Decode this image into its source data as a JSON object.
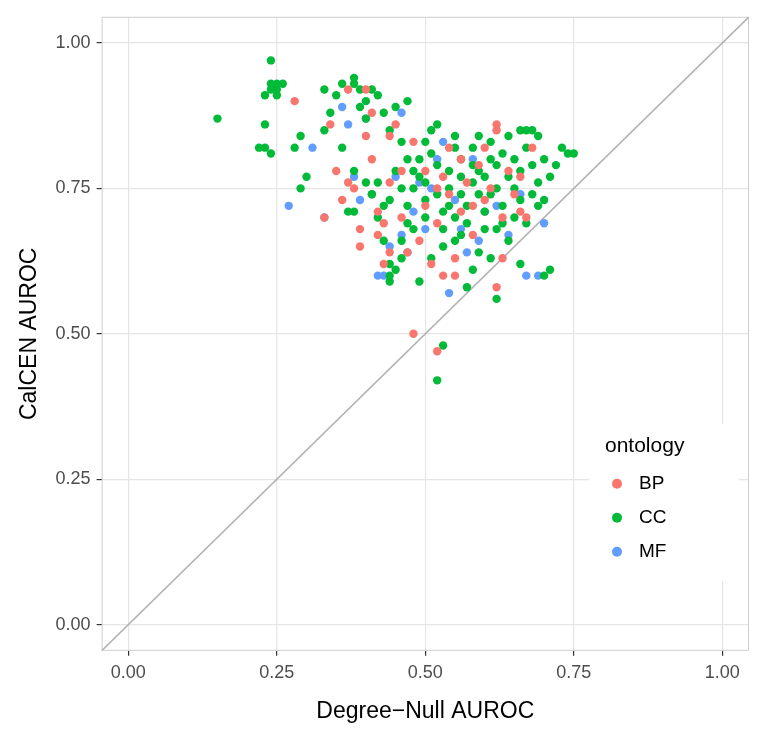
{
  "chart_data": {
    "type": "scatter",
    "x_label": "Degree−Null AUROC",
    "y_label": "CalCEN AUROC",
    "xlim": [
      -0.045,
      1.045
    ],
    "ylim": [
      -0.045,
      1.045
    ],
    "xticks": [
      {
        "value": 0,
        "label": "0.00"
      },
      {
        "value": 0.25,
        "label": "0.25"
      },
      {
        "value": 0.5,
        "label": "0.50"
      },
      {
        "value": 0.75,
        "label": "0.75"
      },
      {
        "value": 1,
        "label": "1.00"
      }
    ],
    "yticks": [
      {
        "value": 0,
        "label": "0.00"
      },
      {
        "value": 0.25,
        "label": "0.25"
      },
      {
        "value": 0.5,
        "label": "0.50"
      },
      {
        "value": 0.75,
        "label": "0.75"
      },
      {
        "value": 1,
        "label": "1.00"
      }
    ],
    "grid": true,
    "legend": "lower right",
    "legend_title": "ontology",
    "marker": "circle",
    "reference_line": {
      "x": [
        -0.045,
        1.045
      ],
      "y": [
        -0.045,
        1.045
      ],
      "color": "#b3b3b3"
    },
    "series": [
      {
        "name": "BP",
        "color": "#F8766D",
        "x": [
          0.28,
          0.33,
          0.34,
          0.35,
          0.36,
          0.37,
          0.37,
          0.38,
          0.39,
          0.39,
          0.4,
          0.4,
          0.41,
          0.41,
          0.42,
          0.42,
          0.43,
          0.43,
          0.44,
          0.44,
          0.45,
          0.46,
          0.46,
          0.47,
          0.48,
          0.48,
          0.49,
          0.5,
          0.5,
          0.51,
          0.52,
          0.52,
          0.53,
          0.53,
          0.54,
          0.54,
          0.55,
          0.55,
          0.56,
          0.56,
          0.57,
          0.58,
          0.58,
          0.59,
          0.6,
          0.6,
          0.61,
          0.62,
          0.62,
          0.62,
          0.63,
          0.63,
          0.64,
          0.65,
          0.66,
          0.66,
          0.67,
          0.68,
          0.44,
          0.52
        ],
        "values": [
          0.9,
          0.7,
          0.86,
          0.78,
          0.73,
          0.92,
          0.76,
          0.75,
          0.68,
          0.65,
          0.92,
          0.84,
          0.88,
          0.8,
          0.71,
          0.67,
          0.69,
          0.62,
          0.84,
          0.64,
          0.86,
          0.7,
          0.78,
          0.64,
          0.83,
          0.5,
          0.66,
          0.78,
          0.72,
          0.62,
          0.47,
          0.69,
          0.77,
          0.6,
          0.82,
          0.74,
          0.63,
          0.6,
          0.8,
          0.71,
          0.76,
          0.72,
          0.67,
          0.79,
          0.73,
          0.82,
          0.75,
          0.85,
          0.58,
          0.86,
          0.7,
          0.63,
          0.78,
          0.74,
          0.71,
          0.77,
          0.7,
          0.82,
          0.76,
          0.75
        ]
      },
      {
        "name": "CC",
        "color": "#00BA38",
        "x": [
          0.15,
          0.22,
          0.23,
          0.24,
          0.23,
          0.23,
          0.24,
          0.24,
          0.24,
          0.25,
          0.25,
          0.26,
          0.25,
          0.28,
          0.29,
          0.3,
          0.29,
          0.33,
          0.33,
          0.34,
          0.35,
          0.36,
          0.38,
          0.38,
          0.39,
          0.39,
          0.4,
          0.4,
          0.41,
          0.42,
          0.43,
          0.45,
          0.47,
          0.44,
          0.46,
          0.36,
          0.37,
          0.38,
          0.38,
          0.4,
          0.41,
          0.42,
          0.43,
          0.43,
          0.44,
          0.44,
          0.44,
          0.45,
          0.46,
          0.46,
          0.47,
          0.47,
          0.48,
          0.48,
          0.49,
          0.49,
          0.49,
          0.5,
          0.5,
          0.5,
          0.51,
          0.51,
          0.52,
          0.52,
          0.52,
          0.53,
          0.53,
          0.53,
          0.53,
          0.52,
          0.54,
          0.54,
          0.55,
          0.55,
          0.55,
          0.56,
          0.56,
          0.56,
          0.57,
          0.57,
          0.57,
          0.58,
          0.58,
          0.58,
          0.59,
          0.59,
          0.59,
          0.6,
          0.6,
          0.6,
          0.61,
          0.61,
          0.61,
          0.62,
          0.62,
          0.62,
          0.63,
          0.63,
          0.63,
          0.64,
          0.64,
          0.65,
          0.65,
          0.65,
          0.66,
          0.66,
          0.66,
          0.67,
          0.67,
          0.67,
          0.68,
          0.68,
          0.68,
          0.69,
          0.69,
          0.69,
          0.7,
          0.7,
          0.71,
          0.71,
          0.72,
          0.73,
          0.74,
          0.75,
          0.7,
          0.58,
          0.55,
          0.51,
          0.48,
          0.46,
          0.45,
          0.44,
          0.42,
          0.47,
          0.5,
          0.54,
          0.56,
          0.59,
          0.62,
          0.64,
          0.66,
          0.61
        ],
        "values": [
          0.87,
          0.82,
          0.82,
          0.81,
          0.86,
          0.91,
          0.92,
          0.93,
          0.97,
          0.93,
          0.92,
          0.93,
          0.91,
          0.82,
          0.84,
          0.77,
          0.75,
          0.92,
          0.85,
          0.88,
          0.91,
          0.93,
          0.94,
          0.93,
          0.92,
          0.89,
          0.9,
          0.87,
          0.92,
          0.91,
          0.88,
          0.89,
          0.9,
          0.85,
          0.83,
          0.82,
          0.71,
          0.71,
          0.78,
          0.76,
          0.74,
          0.7,
          0.72,
          0.66,
          0.62,
          0.6,
          0.59,
          0.61,
          0.63,
          0.66,
          0.69,
          0.72,
          0.75,
          0.78,
          0.8,
          0.77,
          0.59,
          0.73,
          0.7,
          0.76,
          0.81,
          0.85,
          0.86,
          0.79,
          0.74,
          0.71,
          0.68,
          0.65,
          0.48,
          0.42,
          0.78,
          0.75,
          0.7,
          0.82,
          0.84,
          0.8,
          0.77,
          0.74,
          0.72,
          0.69,
          0.58,
          0.76,
          0.79,
          0.82,
          0.84,
          0.78,
          0.74,
          0.71,
          0.68,
          0.77,
          0.8,
          0.83,
          0.74,
          0.56,
          0.75,
          0.79,
          0.81,
          0.72,
          0.69,
          0.77,
          0.84,
          0.8,
          0.75,
          0.7,
          0.73,
          0.78,
          0.85,
          0.85,
          0.82,
          0.69,
          0.85,
          0.79,
          0.74,
          0.72,
          0.76,
          0.84,
          0.8,
          0.73,
          0.77,
          0.61,
          0.79,
          0.82,
          0.81,
          0.81,
          0.6,
          0.61,
          0.66,
          0.63,
          0.68,
          0.75,
          0.78,
          0.73,
          0.76,
          0.8,
          0.83,
          0.72,
          0.67,
          0.64,
          0.68,
          0.66,
          0.62,
          0.63
        ]
      },
      {
        "name": "MF",
        "color": "#619CFF",
        "x": [
          0.27,
          0.31,
          0.33,
          0.36,
          0.37,
          0.38,
          0.39,
          0.4,
          0.41,
          0.42,
          0.43,
          0.44,
          0.45,
          0.46,
          0.46,
          0.47,
          0.48,
          0.49,
          0.5,
          0.51,
          0.52,
          0.53,
          0.54,
          0.55,
          0.56,
          0.57,
          0.58,
          0.59,
          0.6,
          0.62,
          0.64,
          0.66,
          0.67,
          0.69,
          0.7
        ],
        "values": [
          0.72,
          0.82,
          0.7,
          0.89,
          0.86,
          0.77,
          0.73,
          0.87,
          0.74,
          0.6,
          0.6,
          0.65,
          0.77,
          0.88,
          0.67,
          0.64,
          0.71,
          0.76,
          0.68,
          0.75,
          0.8,
          0.83,
          0.57,
          0.73,
          0.68,
          0.64,
          0.8,
          0.66,
          0.71,
          0.72,
          0.67,
          0.74,
          0.6,
          0.6,
          0.69
        ]
      }
    ]
  }
}
